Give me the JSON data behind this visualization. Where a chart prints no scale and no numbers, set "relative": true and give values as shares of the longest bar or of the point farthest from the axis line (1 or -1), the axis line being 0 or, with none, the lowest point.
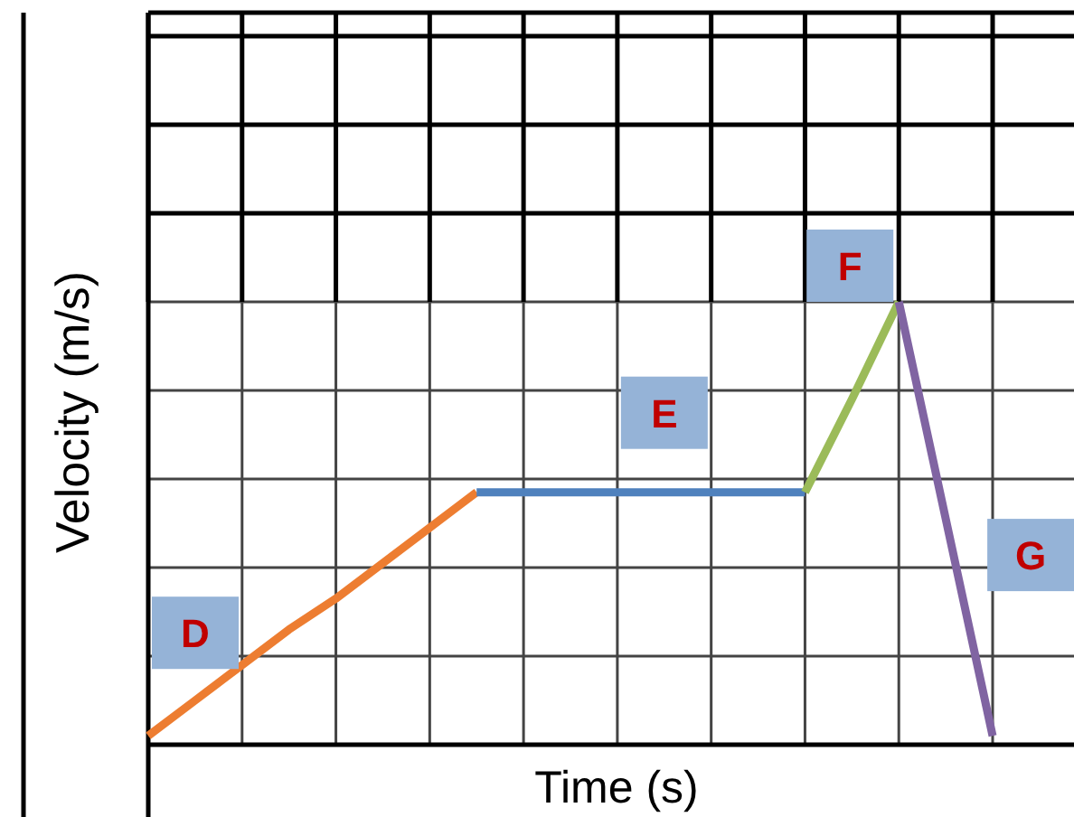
{
  "chart_data": {
    "type": "line",
    "xlabel": "Time (s)",
    "ylabel": "Velocity (m/s)",
    "relative": true,
    "grid": true,
    "categories": [
      null,
      null,
      null,
      null,
      null,
      null,
      null,
      null,
      null,
      null,
      null,
      null,
      null,
      null,
      null,
      null,
      null,
      null,
      null
    ],
    "series": [
      {
        "name": "D",
        "color": "#ed7d31",
        "values": [
          0.02,
          0.1,
          0.18,
          0.26,
          0.33,
          0.41,
          0.49,
          0.57,
          null,
          null,
          null,
          null,
          null,
          null,
          null,
          null,
          null,
          null,
          null
        ]
      },
      {
        "name": "E",
        "color": "#4f81bd",
        "values": [
          null,
          null,
          null,
          null,
          null,
          null,
          null,
          0.57,
          0.57,
          0.57,
          0.57,
          0.57,
          0.57,
          0.57,
          0.57,
          null,
          null,
          null,
          null
        ]
      },
      {
        "name": "F",
        "color": "#9bbb59",
        "values": [
          null,
          null,
          null,
          null,
          null,
          null,
          null,
          null,
          null,
          null,
          null,
          null,
          null,
          null,
          0.57,
          0.78,
          1,
          null,
          null
        ]
      },
      {
        "name": "G",
        "color": "#8064a2",
        "values": [
          null,
          null,
          null,
          null,
          null,
          null,
          null,
          null,
          null,
          null,
          null,
          null,
          null,
          null,
          null,
          null,
          1,
          0.51,
          0.02
        ]
      }
    ]
  }
}
